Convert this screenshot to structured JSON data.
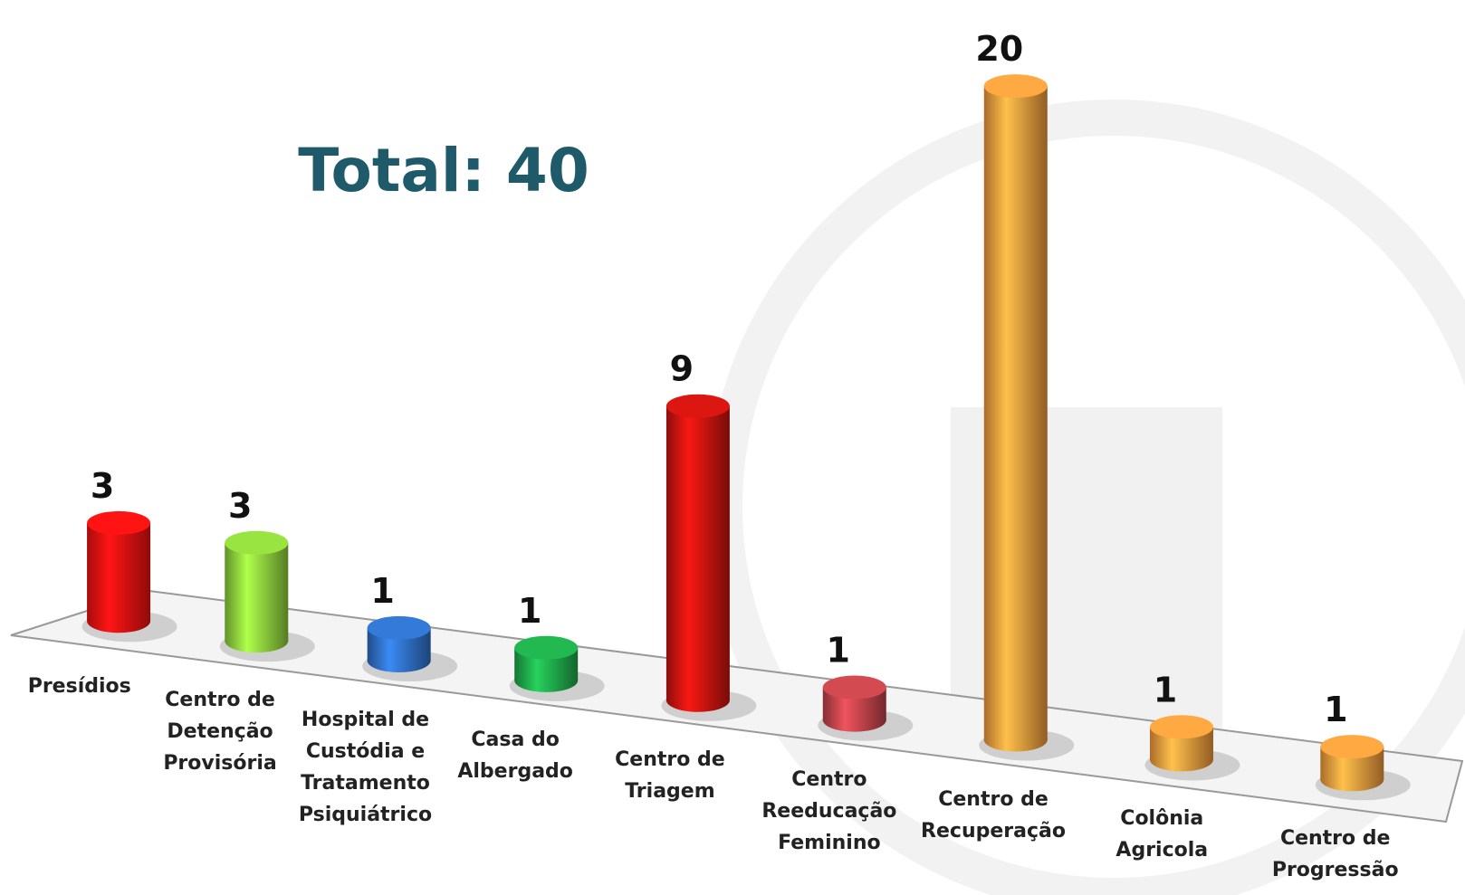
{
  "chart_data": {
    "type": "cylinder-bar",
    "title": "Total: 40",
    "categories": [
      "Presídios",
      "Centro de Detenção Provisória",
      "Hospital de Custódia e Tratamento Psiquiátrico",
      "Casa do Albergado",
      "Centro de Triagem",
      "Centro Reeducação Feminino",
      "Centro de Recuperação",
      "Colônia Agricola",
      "Centro de Progressão"
    ],
    "values": [
      3,
      3,
      1,
      1,
      9,
      1,
      20,
      1,
      1
    ],
    "colors": [
      "#ee1111",
      "#8ccf3c",
      "#2f6fc4",
      "#1fa84a",
      "#c8140f",
      "#c0434a",
      "#f39a3c",
      "#f39a3c",
      "#f39a3c"
    ]
  }
}
